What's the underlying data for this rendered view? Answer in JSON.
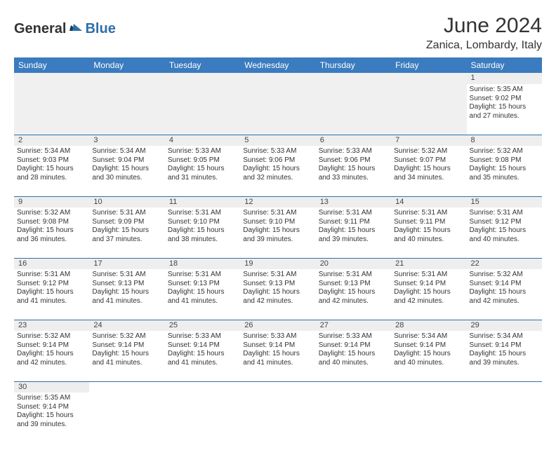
{
  "brand": {
    "part1": "General",
    "part2": "Blue"
  },
  "title": "June 2024",
  "subtitle": "Zanica, Lombardy, Italy",
  "colors": {
    "header_bg": "#3b7bbf",
    "header_text": "#ffffff",
    "daynum_bg": "#eeeeee",
    "border": "#2f6fa8",
    "brand_accent": "#2f6fa8"
  },
  "weekdays": [
    "Sunday",
    "Monday",
    "Tuesday",
    "Wednesday",
    "Thursday",
    "Friday",
    "Saturday"
  ],
  "weeks": [
    [
      null,
      null,
      null,
      null,
      null,
      null,
      {
        "n": "1",
        "sr": "5:35 AM",
        "ss": "9:02 PM",
        "dl": "15 hours and 27 minutes."
      }
    ],
    [
      {
        "n": "2",
        "sr": "5:34 AM",
        "ss": "9:03 PM",
        "dl": "15 hours and 28 minutes."
      },
      {
        "n": "3",
        "sr": "5:34 AM",
        "ss": "9:04 PM",
        "dl": "15 hours and 30 minutes."
      },
      {
        "n": "4",
        "sr": "5:33 AM",
        "ss": "9:05 PM",
        "dl": "15 hours and 31 minutes."
      },
      {
        "n": "5",
        "sr": "5:33 AM",
        "ss": "9:06 PM",
        "dl": "15 hours and 32 minutes."
      },
      {
        "n": "6",
        "sr": "5:33 AM",
        "ss": "9:06 PM",
        "dl": "15 hours and 33 minutes."
      },
      {
        "n": "7",
        "sr": "5:32 AM",
        "ss": "9:07 PM",
        "dl": "15 hours and 34 minutes."
      },
      {
        "n": "8",
        "sr": "5:32 AM",
        "ss": "9:08 PM",
        "dl": "15 hours and 35 minutes."
      }
    ],
    [
      {
        "n": "9",
        "sr": "5:32 AM",
        "ss": "9:08 PM",
        "dl": "15 hours and 36 minutes."
      },
      {
        "n": "10",
        "sr": "5:31 AM",
        "ss": "9:09 PM",
        "dl": "15 hours and 37 minutes."
      },
      {
        "n": "11",
        "sr": "5:31 AM",
        "ss": "9:10 PM",
        "dl": "15 hours and 38 minutes."
      },
      {
        "n": "12",
        "sr": "5:31 AM",
        "ss": "9:10 PM",
        "dl": "15 hours and 39 minutes."
      },
      {
        "n": "13",
        "sr": "5:31 AM",
        "ss": "9:11 PM",
        "dl": "15 hours and 39 minutes."
      },
      {
        "n": "14",
        "sr": "5:31 AM",
        "ss": "9:11 PM",
        "dl": "15 hours and 40 minutes."
      },
      {
        "n": "15",
        "sr": "5:31 AM",
        "ss": "9:12 PM",
        "dl": "15 hours and 40 minutes."
      }
    ],
    [
      {
        "n": "16",
        "sr": "5:31 AM",
        "ss": "9:12 PM",
        "dl": "15 hours and 41 minutes."
      },
      {
        "n": "17",
        "sr": "5:31 AM",
        "ss": "9:13 PM",
        "dl": "15 hours and 41 minutes."
      },
      {
        "n": "18",
        "sr": "5:31 AM",
        "ss": "9:13 PM",
        "dl": "15 hours and 41 minutes."
      },
      {
        "n": "19",
        "sr": "5:31 AM",
        "ss": "9:13 PM",
        "dl": "15 hours and 42 minutes."
      },
      {
        "n": "20",
        "sr": "5:31 AM",
        "ss": "9:13 PM",
        "dl": "15 hours and 42 minutes."
      },
      {
        "n": "21",
        "sr": "5:31 AM",
        "ss": "9:14 PM",
        "dl": "15 hours and 42 minutes."
      },
      {
        "n": "22",
        "sr": "5:32 AM",
        "ss": "9:14 PM",
        "dl": "15 hours and 42 minutes."
      }
    ],
    [
      {
        "n": "23",
        "sr": "5:32 AM",
        "ss": "9:14 PM",
        "dl": "15 hours and 42 minutes."
      },
      {
        "n": "24",
        "sr": "5:32 AM",
        "ss": "9:14 PM",
        "dl": "15 hours and 41 minutes."
      },
      {
        "n": "25",
        "sr": "5:33 AM",
        "ss": "9:14 PM",
        "dl": "15 hours and 41 minutes."
      },
      {
        "n": "26",
        "sr": "5:33 AM",
        "ss": "9:14 PM",
        "dl": "15 hours and 41 minutes."
      },
      {
        "n": "27",
        "sr": "5:33 AM",
        "ss": "9:14 PM",
        "dl": "15 hours and 40 minutes."
      },
      {
        "n": "28",
        "sr": "5:34 AM",
        "ss": "9:14 PM",
        "dl": "15 hours and 40 minutes."
      },
      {
        "n": "29",
        "sr": "5:34 AM",
        "ss": "9:14 PM",
        "dl": "15 hours and 39 minutes."
      }
    ],
    [
      {
        "n": "30",
        "sr": "5:35 AM",
        "ss": "9:14 PM",
        "dl": "15 hours and 39 minutes."
      },
      null,
      null,
      null,
      null,
      null,
      null
    ]
  ],
  "labels": {
    "sunrise": "Sunrise:",
    "sunset": "Sunset:",
    "daylight": "Daylight:"
  }
}
